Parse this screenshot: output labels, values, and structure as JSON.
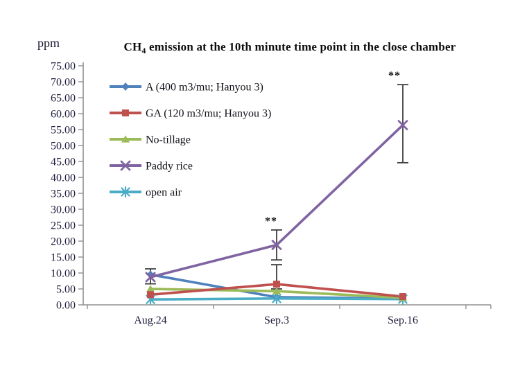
{
  "header": {
    "unit_label": "ppm",
    "title_prefix": "CH",
    "title_sub": "4",
    "title_rest": " emission at the 10th minute time point in the close chamber"
  },
  "chart_data": {
    "type": "line",
    "title": "CH4 emission at the 10th minute time point in the close chamber",
    "ylabel": "ppm",
    "xlabel": "",
    "ylim": [
      0,
      75
    ],
    "ytick_step": 5,
    "ytick_decimals": 2,
    "grid": false,
    "legend_position": "top-left-inside",
    "categories": [
      "Aug.24",
      "Sep.3",
      "Sep.16"
    ],
    "series": [
      {
        "name": "A (400 m3/mu; Hanyou 3)",
        "color": "#4F81BD",
        "marker": "diamond",
        "values": [
          9.5,
          2.4,
          2.0
        ]
      },
      {
        "name": "GA (120 m3/mu; Hanyou 3)",
        "color": "#C0504D",
        "marker": "square",
        "values": [
          3.2,
          6.5,
          2.6
        ]
      },
      {
        "name": "No-tillage",
        "color": "#9BBB59",
        "marker": "triangle",
        "values": [
          5.0,
          4.3,
          2.2
        ]
      },
      {
        "name": "Paddy rice",
        "color": "#8064A2",
        "marker": "x",
        "values": [
          8.7,
          18.8,
          56.4
        ]
      },
      {
        "name": "open air",
        "color": "#4BACC6",
        "marker": "asterisk",
        "values": [
          1.7,
          2.0,
          1.8
        ]
      }
    ],
    "error_bars": [
      {
        "series": "Paddy rice",
        "point": 0,
        "center": 8.7,
        "plus": 2.6,
        "minus": 2.1
      },
      {
        "series": "GA (120 m3/mu; Hanyou 3)",
        "point": 1,
        "center": 6.5,
        "plus": 6.1,
        "minus": 1.5
      },
      {
        "series": "Paddy rice",
        "point": 1,
        "center": 18.8,
        "plus": 4.7,
        "minus": 4.7
      },
      {
        "series": "Paddy rice",
        "point": 2,
        "center": 56.4,
        "plus": 12.7,
        "minus": 11.8
      }
    ],
    "annotations": [
      {
        "text": "**",
        "category_index": 1,
        "y": 26.3,
        "x_offset": -8
      },
      {
        "text": "**",
        "category_index": 2,
        "y": 72.0,
        "x_offset": -12
      }
    ],
    "error_bar_color": "#3f3f3f",
    "axis_color": "#909090"
  }
}
